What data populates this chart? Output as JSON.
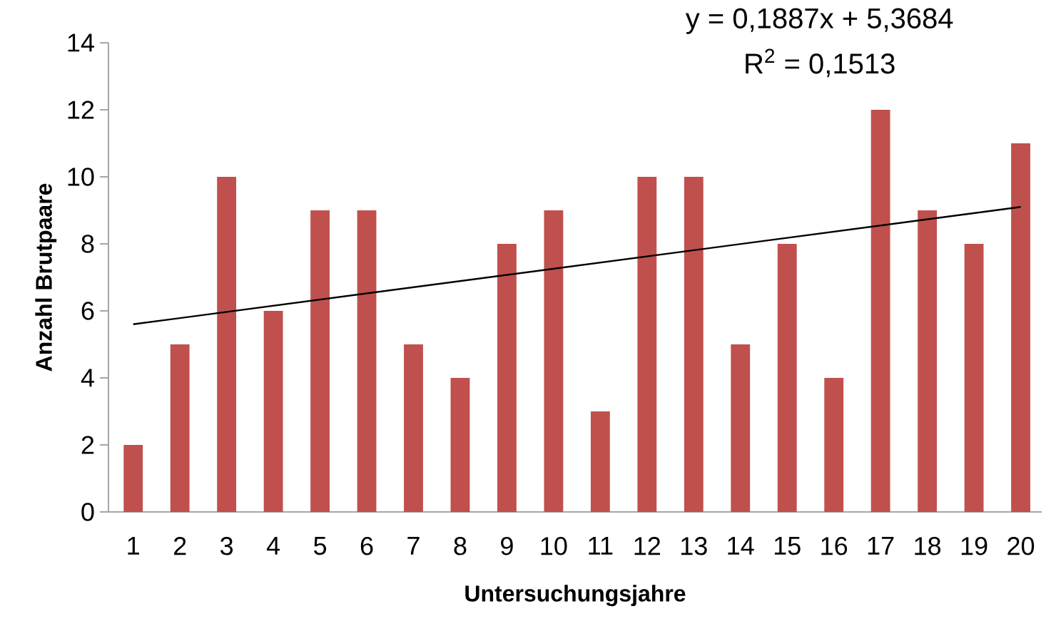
{
  "chart_data": {
    "type": "bar",
    "xlabel": "Untersuchungsjahre",
    "ylabel": "Anzahl Brutpaare",
    "categories": [
      "1",
      "2",
      "3",
      "4",
      "5",
      "6",
      "7",
      "8",
      "9",
      "10",
      "11",
      "12",
      "13",
      "14",
      "15",
      "16",
      "17",
      "18",
      "19",
      "20"
    ],
    "series": [
      {
        "color": "#c0504d",
        "values": [
          2,
          5,
          10,
          6,
          9,
          9,
          5,
          4,
          8,
          9,
          3,
          10,
          10,
          5,
          8,
          4,
          12,
          9,
          8,
          11
        ]
      },
      {
        "type": "line",
        "color": "#000000",
        "values": [
          5.6,
          null,
          null,
          null,
          null,
          null,
          null,
          null,
          null,
          null,
          null,
          null,
          null,
          null,
          null,
          null,
          null,
          null,
          null,
          9.1
        ]
      }
    ],
    "ylim": [
      0,
      14
    ],
    "yticks": [
      0,
      2,
      4,
      6,
      8,
      10,
      12,
      14
    ],
    "annotations": [
      "y = 0,1887x + 5,3684",
      "R$^{2}$ = 0,1513"
    ]
  }
}
